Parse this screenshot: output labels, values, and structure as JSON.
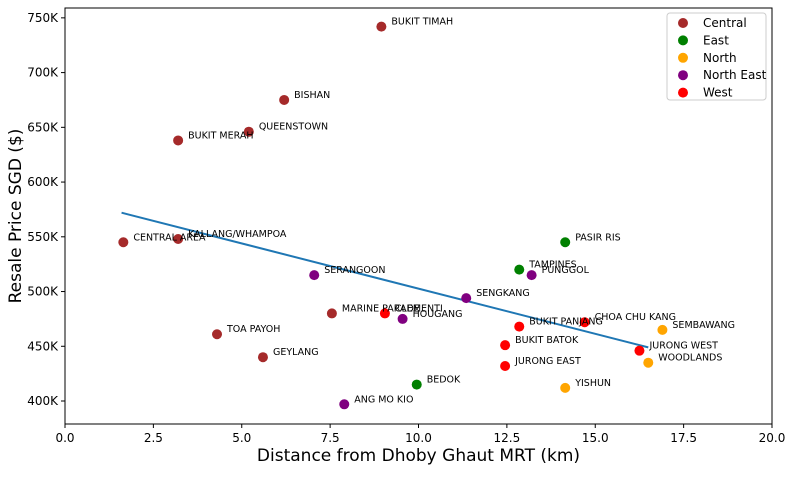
{
  "chart_data": {
    "type": "scatter",
    "title": "",
    "xlabel": "Distance from Dhoby Ghaut MRT (km)",
    "ylabel": "Resale Price SGD ($)",
    "xlim": [
      0,
      20
    ],
    "ylim": [
      379000,
      759000
    ],
    "xticks": [
      {
        "value": 0,
        "label": "0.0"
      },
      {
        "value": 2.5,
        "label": "2.5"
      },
      {
        "value": 5,
        "label": "5.0"
      },
      {
        "value": 7.5,
        "label": "7.5"
      },
      {
        "value": 10,
        "label": "10.0"
      },
      {
        "value": 12.5,
        "label": "12.5"
      },
      {
        "value": 15,
        "label": "15.0"
      },
      {
        "value": 17.5,
        "label": "17.5"
      },
      {
        "value": 20,
        "label": "20.0"
      }
    ],
    "yticks": [
      {
        "value": 400000,
        "label": "400K"
      },
      {
        "value": 450000,
        "label": "450K"
      },
      {
        "value": 500000,
        "label": "500K"
      },
      {
        "value": 550000,
        "label": "550K"
      },
      {
        "value": 600000,
        "label": "600K"
      },
      {
        "value": 650000,
        "label": "650K"
      },
      {
        "value": 700000,
        "label": "700K"
      },
      {
        "value": 750000,
        "label": "750K"
      }
    ],
    "grid": false,
    "legend_position": "top-right",
    "series": [
      {
        "name": "Central",
        "color": "#a52a2a",
        "points": [
          {
            "label": "BUKIT TIMAH",
            "x": 8.95,
            "y": 742000
          },
          {
            "label": "BISHAN",
            "x": 6.2,
            "y": 675000
          },
          {
            "label": "QUEENSTOWN",
            "x": 5.2,
            "y": 646000
          },
          {
            "label": "BUKIT MERAH",
            "x": 3.2,
            "y": 638000
          },
          {
            "label": "CENTRAL AREA",
            "x": 1.65,
            "y": 545000
          },
          {
            "label": "KALLANG/WHAMPOA",
            "x": 3.2,
            "y": 548000
          },
          {
            "label": "MARINE PARADE",
            "x": 7.55,
            "y": 480000
          },
          {
            "label": "TOA PAYOH",
            "x": 4.3,
            "y": 461000
          },
          {
            "label": "GEYLANG",
            "x": 5.6,
            "y": 440000
          }
        ]
      },
      {
        "name": "East",
        "color": "#008000",
        "points": [
          {
            "label": "PASIR RIS",
            "x": 14.15,
            "y": 545000
          },
          {
            "label": "TAMPINES",
            "x": 12.85,
            "y": 520000
          },
          {
            "label": "BEDOK",
            "x": 9.95,
            "y": 415000
          }
        ]
      },
      {
        "name": "North",
        "color": "#ffa500",
        "points": [
          {
            "label": "SEMBAWANG",
            "x": 16.9,
            "y": 465000
          },
          {
            "label": "WOODLANDS",
            "x": 16.5,
            "y": 435000
          },
          {
            "label": "YISHUN",
            "x": 14.15,
            "y": 412000
          }
        ]
      },
      {
        "name": "North East",
        "color": "#800080",
        "points": [
          {
            "label": "SERANGOON",
            "x": 7.05,
            "y": 515000
          },
          {
            "label": "PUNGGOL",
            "x": 13.2,
            "y": 515000
          },
          {
            "label": "SENGKANG",
            "x": 11.35,
            "y": 494000
          },
          {
            "label": "HOUGANG",
            "x": 9.55,
            "y": 475000
          },
          {
            "label": "ANG MO KIO",
            "x": 7.9,
            "y": 397000
          }
        ]
      },
      {
        "name": "West",
        "color": "#ff0000",
        "points": [
          {
            "label": "CLEMENTI",
            "x": 9.05,
            "y": 480000
          },
          {
            "label": "CHOA CHU KANG",
            "x": 14.7,
            "y": 472000
          },
          {
            "label": "BUKIT PANJANG",
            "x": 12.85,
            "y": 468000
          },
          {
            "label": "BUKIT BATOK",
            "x": 12.45,
            "y": 451000
          },
          {
            "label": "JURONG WEST",
            "x": 16.25,
            "y": 446000
          },
          {
            "label": "JURONG EAST",
            "x": 12.45,
            "y": 432000
          }
        ]
      }
    ],
    "trendline": {
      "color": "#1f77b4",
      "x": [
        1.6,
        16.5
      ],
      "y": [
        572000,
        449000
      ]
    }
  }
}
